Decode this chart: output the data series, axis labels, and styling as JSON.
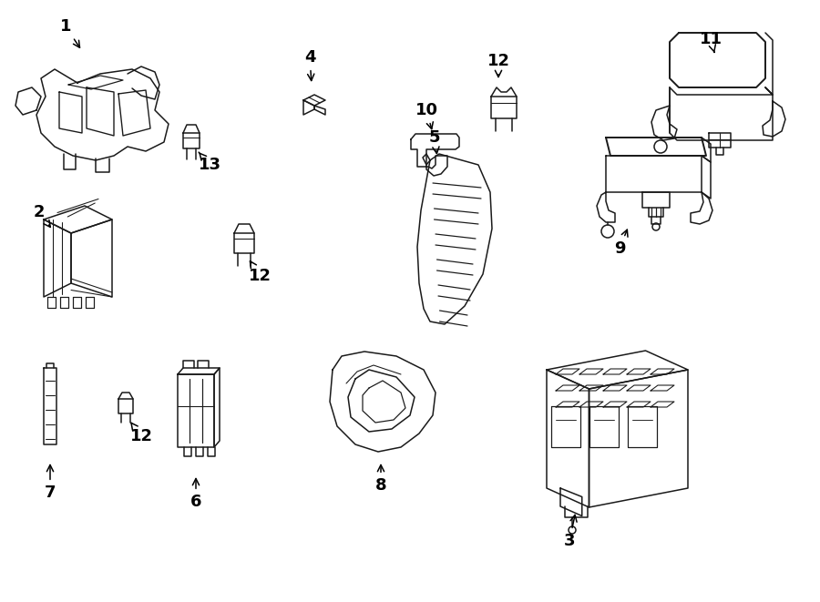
{
  "bg_color": "#ffffff",
  "line_color": "#1a1a1a",
  "lw": 1.1,
  "figsize": [
    9.0,
    6.61
  ],
  "dpi": 100
}
